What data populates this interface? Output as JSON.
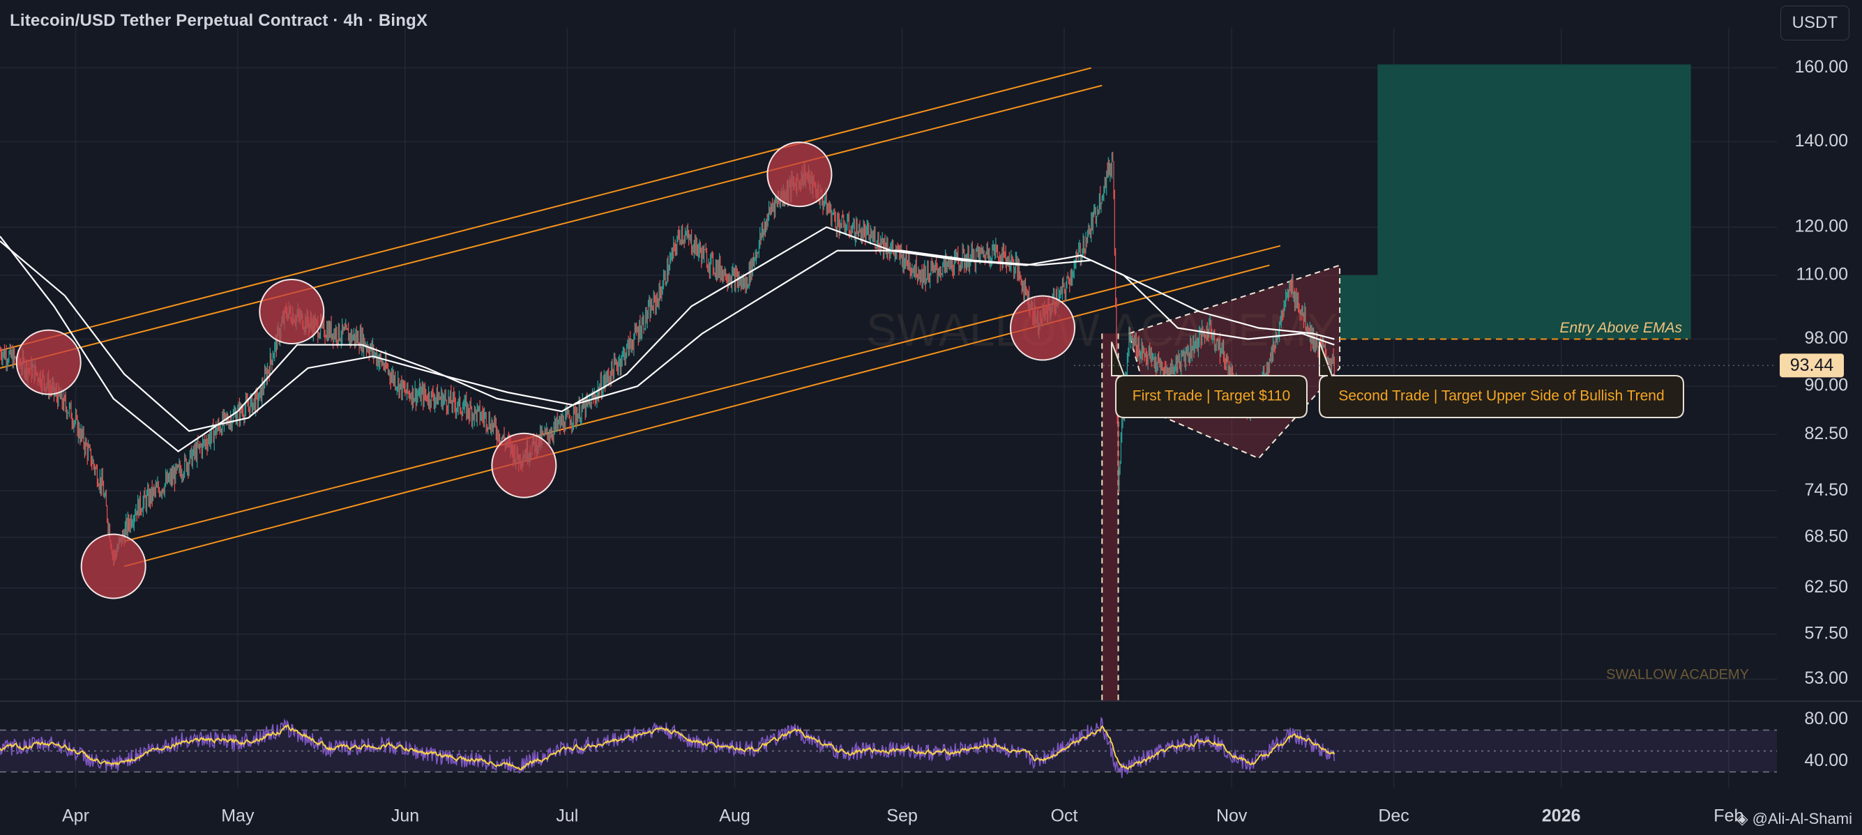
{
  "header": {
    "title": "Litecoin/USD Tether Perpetual Contract · 4h · BingX",
    "currency_button": "USDT"
  },
  "footer": {
    "credit": "@Ali-Al-Shami",
    "credit_icon": "tradingview-diamond-icon"
  },
  "colors": {
    "background": "#151924",
    "grid": "#232734",
    "channel": "#f7931a",
    "ema": "#ffffff",
    "candle_up": "#26a69a",
    "candle_down": "#ef5350",
    "highlight_circle": "#c23b45",
    "target_zone": "#144b44",
    "stop_zone": "#4a1f2c",
    "rsi": "#7e57c2",
    "rsi_signal": "#f5d04a"
  },
  "chart_data": {
    "type": "candlestick",
    "title": "Litecoin/USD Tether Perpetual Contract · 4h · BingX",
    "y_scale": "log",
    "ylim": [
      51,
      172
    ],
    "y_ticks": [
      "160.00",
      "140.00",
      "120.00",
      "110.00",
      "98.00",
      "90.00",
      "82.50",
      "74.50",
      "68.50",
      "62.50",
      "57.50",
      "53.00"
    ],
    "x_ticks": [
      "Apr",
      "May",
      "Jun",
      "Jul",
      "Aug",
      "Sep",
      "Oct",
      "Nov",
      "Dec",
      "2026",
      "Feb"
    ],
    "x_tick_dates": [
      "2025-04-01",
      "2025-05-01",
      "2025-06-01",
      "2025-07-01",
      "2025-08-01",
      "2025-09-01",
      "2025-10-01",
      "2025-11-01",
      "2025-12-01",
      "2026-01-01",
      "2026-02-01"
    ],
    "last_price": "93.44",
    "price_path": [
      [
        "2025-03-18",
        96
      ],
      [
        "2025-03-25",
        92
      ],
      [
        "2025-03-31",
        86
      ],
      [
        "2025-04-06",
        75
      ],
      [
        "2025-04-08",
        66
      ],
      [
        "2025-04-12",
        72
      ],
      [
        "2025-04-20",
        77
      ],
      [
        "2025-04-28",
        84
      ],
      [
        "2025-05-05",
        88
      ],
      [
        "2025-05-10",
        103
      ],
      [
        "2025-05-16",
        100
      ],
      [
        "2025-05-24",
        98
      ],
      [
        "2025-06-01",
        89
      ],
      [
        "2025-06-08",
        88
      ],
      [
        "2025-06-16",
        85
      ],
      [
        "2025-06-22",
        79
      ],
      [
        "2025-06-28",
        83
      ],
      [
        "2025-07-05",
        87
      ],
      [
        "2025-07-12",
        96
      ],
      [
        "2025-07-18",
        106
      ],
      [
        "2025-07-22",
        119
      ],
      [
        "2025-07-28",
        112
      ],
      [
        "2025-08-03",
        108
      ],
      [
        "2025-08-08",
        125
      ],
      [
        "2025-08-14",
        132
      ],
      [
        "2025-08-20",
        121
      ],
      [
        "2025-08-28",
        117
      ],
      [
        "2025-09-05",
        110
      ],
      [
        "2025-09-12",
        113
      ],
      [
        "2025-09-18",
        115
      ],
      [
        "2025-09-22",
        112
      ],
      [
        "2025-09-26",
        101
      ],
      [
        "2025-10-01",
        107
      ],
      [
        "2025-10-06",
        120
      ],
      [
        "2025-10-10",
        136
      ],
      [
        "2025-10-11",
        76
      ],
      [
        "2025-10-13",
        98
      ],
      [
        "2025-10-20",
        92
      ],
      [
        "2025-10-28",
        100
      ],
      [
        "2025-11-04",
        86
      ],
      [
        "2025-11-08",
        94
      ],
      [
        "2025-11-12",
        108
      ],
      [
        "2025-11-16",
        98
      ],
      [
        "2025-11-20",
        93.44
      ]
    ],
    "ema_fast": [
      [
        "2025-03-18",
        118
      ],
      [
        "2025-03-28",
        104
      ],
      [
        "2025-04-08",
        88
      ],
      [
        "2025-04-20",
        80
      ],
      [
        "2025-05-01",
        86
      ],
      [
        "2025-05-12",
        97
      ],
      [
        "2025-05-24",
        97
      ],
      [
        "2025-06-05",
        93
      ],
      [
        "2025-06-18",
        88
      ],
      [
        "2025-06-30",
        86
      ],
      [
        "2025-07-12",
        92
      ],
      [
        "2025-07-24",
        104
      ],
      [
        "2025-08-06",
        112
      ],
      [
        "2025-08-18",
        120
      ],
      [
        "2025-08-30",
        115
      ],
      [
        "2025-09-12",
        113
      ],
      [
        "2025-09-24",
        112
      ],
      [
        "2025-10-04",
        114
      ],
      [
        "2025-10-12",
        110
      ],
      [
        "2025-10-22",
        100
      ],
      [
        "2025-11-04",
        98
      ],
      [
        "2025-11-14",
        99
      ],
      [
        "2025-11-20",
        97
      ]
    ],
    "ema_slow": [
      [
        "2025-03-18",
        117
      ],
      [
        "2025-03-30",
        106
      ],
      [
        "2025-04-10",
        92
      ],
      [
        "2025-04-22",
        83
      ],
      [
        "2025-05-03",
        85
      ],
      [
        "2025-05-14",
        93
      ],
      [
        "2025-05-26",
        95
      ],
      [
        "2025-06-07",
        92
      ],
      [
        "2025-06-20",
        89
      ],
      [
        "2025-07-02",
        87
      ],
      [
        "2025-07-14",
        90
      ],
      [
        "2025-07-26",
        99
      ],
      [
        "2025-08-08",
        107
      ],
      [
        "2025-08-20",
        115
      ],
      [
        "2025-09-01",
        115
      ],
      [
        "2025-09-14",
        113
      ],
      [
        "2025-09-26",
        112
      ],
      [
        "2025-10-06",
        113
      ],
      [
        "2025-10-14",
        109
      ],
      [
        "2025-10-26",
        103
      ],
      [
        "2025-11-06",
        100
      ],
      [
        "2025-11-16",
        99
      ],
      [
        "2025-11-20",
        98
      ]
    ],
    "channel": {
      "upper": {
        "from": [
          "2025-03-18",
          96
        ],
        "to": [
          "2025-10-06",
          160
        ]
      },
      "upper_inner": {
        "from": [
          "2025-03-18",
          93
        ],
        "to": [
          "2025-10-08",
          155
        ]
      },
      "lower_inner": {
        "from": [
          "2025-04-10",
          68
        ],
        "to": [
          "2025-11-10",
          116
        ]
      },
      "lower": {
        "from": [
          "2025-04-10",
          65
        ],
        "to": [
          "2025-11-08",
          112
        ]
      }
    },
    "touch_points": [
      [
        "2025-03-27",
        94
      ],
      [
        "2025-04-08",
        65
      ],
      [
        "2025-05-11",
        103
      ],
      [
        "2025-06-23",
        78
      ],
      [
        "2025-08-13",
        132
      ],
      [
        "2025-09-27",
        100
      ]
    ],
    "triangle": [
      [
        "2025-10-13",
        99
      ],
      [
        "2025-11-21",
        112
      ],
      [
        "2025-11-21",
        93
      ],
      [
        "2025-11-06",
        79
      ],
      [
        "2025-10-17",
        86
      ]
    ],
    "long_position": {
      "entry": 98,
      "stop": 51,
      "target_1": 110,
      "target_2": 161,
      "start": "2025-11-21",
      "split": "2025-11-28",
      "end": "2026-01-25"
    },
    "stop_columns": [
      [
        "2025-10-08",
        "2025-10-11"
      ]
    ],
    "annotations": [
      {
        "text": "Entry Above EMAs",
        "date": "2026-01-18",
        "price": 98
      },
      {
        "text": "First Trade | Target $110",
        "date": "2025-11-22",
        "price": 90
      },
      {
        "text": "Second Trade | Target Upper Side of Bullish Trend",
        "date": "2026-01-04",
        "price": 90
      }
    ],
    "watermark": "SWALLOW ACADEMY",
    "watermark_label": "SWALLOW ACADEMY",
    "rsi": {
      "levels": [
        "80.00",
        "40.00"
      ],
      "upper_band": 70,
      "lower_band": 30,
      "path": [
        [
          "2025-03-18",
          52
        ],
        [
          "2025-03-28",
          58
        ],
        [
          "2025-04-07",
          34
        ],
        [
          "2025-04-14",
          50
        ],
        [
          "2025-04-22",
          62
        ],
        [
          "2025-05-01",
          58
        ],
        [
          "2025-05-10",
          72
        ],
        [
          "2025-05-18",
          52
        ],
        [
          "2025-05-28",
          56
        ],
        [
          "2025-06-08",
          44
        ],
        [
          "2025-06-22",
          36
        ],
        [
          "2025-06-30",
          52
        ],
        [
          "2025-07-08",
          58
        ],
        [
          "2025-07-18",
          72
        ],
        [
          "2025-07-26",
          56
        ],
        [
          "2025-08-05",
          52
        ],
        [
          "2025-08-12",
          70
        ],
        [
          "2025-08-20",
          48
        ],
        [
          "2025-08-30",
          52
        ],
        [
          "2025-09-08",
          48
        ],
        [
          "2025-09-18",
          56
        ],
        [
          "2025-09-26",
          40
        ],
        [
          "2025-10-03",
          62
        ],
        [
          "2025-10-08",
          74
        ],
        [
          "2025-10-11",
          30
        ],
        [
          "2025-10-20",
          52
        ],
        [
          "2025-10-28",
          62
        ],
        [
          "2025-11-04",
          36
        ],
        [
          "2025-11-12",
          66
        ],
        [
          "2025-11-20",
          46
        ]
      ]
    }
  }
}
